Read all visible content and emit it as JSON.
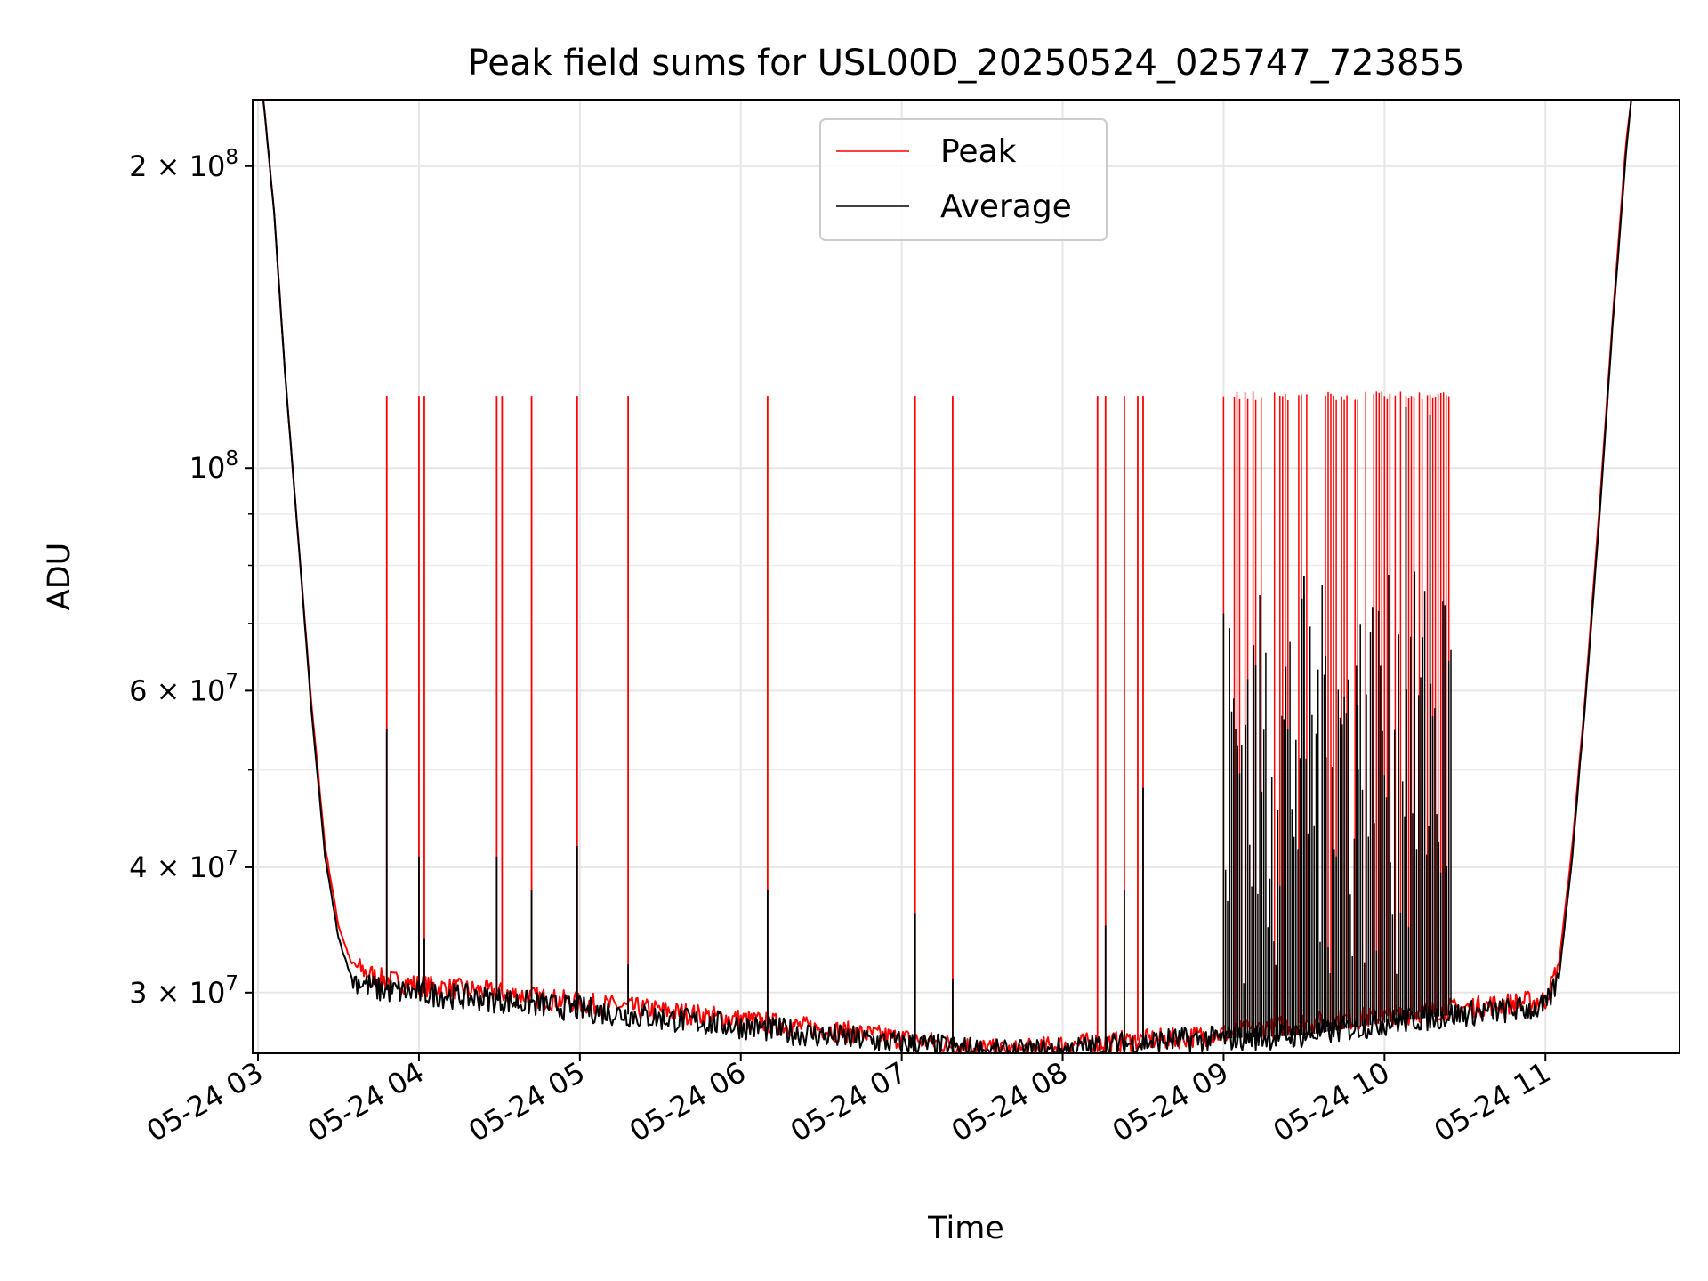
{
  "chart_data": {
    "type": "line",
    "title": "Peak field sums for USL00D_20250524_025747_723855",
    "xlabel": "Time",
    "ylabel": "ADU",
    "yscale": "log",
    "ylim": [
      26100000,
      233000000
    ],
    "xlim": [
      "2025-05-24 02:58",
      "2025-05-24 11:50"
    ],
    "grid": true,
    "legend_placement": "upper center",
    "x_ticks": [
      "05-24 03",
      "05-24 04",
      "05-24 05",
      "05-24 06",
      "05-24 07",
      "05-24 08",
      "05-24 09",
      "05-24 10",
      "05-24 11"
    ],
    "y_ticks": [
      {
        "value": 200000000,
        "mantissa": "2",
        "exponent": "8"
      },
      {
        "value": 100000000,
        "mantissa": "",
        "exponent": "8"
      },
      {
        "value": 60000000,
        "mantissa": "6",
        "exponent": "7"
      },
      {
        "value": 40000000,
        "mantissa": "4",
        "exponent": "7"
      },
      {
        "value": 30000000,
        "mantissa": "3",
        "exponent": "7"
      }
    ],
    "series": [
      {
        "name": "Peak",
        "color": "#ff0000",
        "baseline": [
          [
            "2025-05-24 03:02",
            233000000
          ],
          [
            "2025-05-24 03:06",
            180000000
          ],
          [
            "2025-05-24 03:10",
            125000000
          ],
          [
            "2025-05-24 03:15",
            85000000
          ],
          [
            "2025-05-24 03:20",
            58000000
          ],
          [
            "2025-05-24 03:25",
            42000000
          ],
          [
            "2025-05-24 03:30",
            35000000
          ],
          [
            "2025-05-24 03:35",
            32000000
          ],
          [
            "2025-05-24 03:45",
            31000000
          ],
          [
            "2025-05-24 04:00",
            30500000
          ],
          [
            "2025-05-24 04:30",
            30000000
          ],
          [
            "2025-05-24 05:00",
            29300000
          ],
          [
            "2025-05-24 05:30",
            28800000
          ],
          [
            "2025-05-24 06:00",
            28200000
          ],
          [
            "2025-05-24 06:30",
            27600000
          ],
          [
            "2025-05-24 07:00",
            27000000
          ],
          [
            "2025-05-24 07:20",
            26600000
          ],
          [
            "2025-05-24 07:40",
            26200000
          ],
          [
            "2025-05-24 08:00",
            26600000
          ],
          [
            "2025-05-24 08:20",
            26800000
          ],
          [
            "2025-05-24 08:40",
            27000000
          ],
          [
            "2025-05-24 09:00",
            27300000
          ],
          [
            "2025-05-24 09:30",
            28000000
          ],
          [
            "2025-05-24 10:00",
            28400000
          ],
          [
            "2025-05-24 10:30",
            29000000
          ],
          [
            "2025-05-24 11:00",
            29500000
          ],
          [
            "2025-05-24 11:05",
            32000000
          ],
          [
            "2025-05-24 11:10",
            42000000
          ],
          [
            "2025-05-24 11:15",
            60000000
          ],
          [
            "2025-05-24 11:20",
            90000000
          ],
          [
            "2025-05-24 11:25",
            140000000
          ],
          [
            "2025-05-24 11:30",
            210000000
          ],
          [
            "2025-05-24 11:32",
            233000000
          ]
        ],
        "spikes": [
          [
            "2025-05-24 03:48",
            118000000
          ],
          [
            "2025-05-24 04:00",
            118000000
          ],
          [
            "2025-05-24 04:02",
            118000000
          ],
          [
            "2025-05-24 04:29",
            118000000
          ],
          [
            "2025-05-24 04:31",
            118000000
          ],
          [
            "2025-05-24 04:42",
            118000000
          ],
          [
            "2025-05-24 04:59",
            118000000
          ],
          [
            "2025-05-24 05:18",
            118000000
          ],
          [
            "2025-05-24 06:10",
            118000000
          ],
          [
            "2025-05-24 07:05",
            118000000
          ],
          [
            "2025-05-24 07:19",
            118000000
          ],
          [
            "2025-05-24 08:13",
            118000000
          ],
          [
            "2025-05-24 08:16",
            118000000
          ],
          [
            "2025-05-24 08:23",
            118000000
          ],
          [
            "2025-05-24 08:28",
            118000000
          ],
          [
            "2025-05-24 08:30",
            118000000
          ]
        ],
        "dense_block": [
          "2025-05-24 09:00",
          "2025-05-24 10:25",
          118000000
        ]
      },
      {
        "name": "Average",
        "color": "#000000",
        "baseline": [
          [
            "2025-05-24 03:02",
            233000000
          ],
          [
            "2025-05-24 03:06",
            180000000
          ],
          [
            "2025-05-24 03:10",
            125000000
          ],
          [
            "2025-05-24 03:15",
            85000000
          ],
          [
            "2025-05-24 03:20",
            57000000
          ],
          [
            "2025-05-24 03:25",
            41000000
          ],
          [
            "2025-05-24 03:30",
            34000000
          ],
          [
            "2025-05-24 03:35",
            31000000
          ],
          [
            "2025-05-24 03:45",
            30200000
          ],
          [
            "2025-05-24 04:00",
            30000000
          ],
          [
            "2025-05-24 04:30",
            29500000
          ],
          [
            "2025-05-24 05:00",
            28900000
          ],
          [
            "2025-05-24 05:30",
            28300000
          ],
          [
            "2025-05-24 06:00",
            27800000
          ],
          [
            "2025-05-24 06:30",
            27200000
          ],
          [
            "2025-05-24 07:00",
            26700000
          ],
          [
            "2025-05-24 07:20",
            26400000
          ],
          [
            "2025-05-24 07:40",
            26100000
          ],
          [
            "2025-05-24 08:00",
            26300000
          ],
          [
            "2025-05-24 08:20",
            26600000
          ],
          [
            "2025-05-24 08:40",
            26900000
          ],
          [
            "2025-05-24 09:00",
            27000000
          ],
          [
            "2025-05-24 09:30",
            27200000
          ],
          [
            "2025-05-24 10:00",
            28000000
          ],
          [
            "2025-05-24 10:30",
            28600000
          ],
          [
            "2025-05-24 11:00",
            29000000
          ],
          [
            "2025-05-24 11:05",
            31000000
          ],
          [
            "2025-05-24 11:10",
            41000000
          ],
          [
            "2025-05-24 11:15",
            59000000
          ],
          [
            "2025-05-24 11:20",
            88000000
          ],
          [
            "2025-05-24 11:25",
            138000000
          ],
          [
            "2025-05-24 11:30",
            205000000
          ],
          [
            "2025-05-24 11:32",
            233000000
          ]
        ],
        "spikes": [
          [
            "2025-05-24 03:48",
            55000000
          ],
          [
            "2025-05-24 04:00",
            41000000
          ],
          [
            "2025-05-24 04:02",
            34000000
          ],
          [
            "2025-05-24 04:29",
            41000000
          ],
          [
            "2025-05-24 04:42",
            38000000
          ],
          [
            "2025-05-24 04:59",
            42000000
          ],
          [
            "2025-05-24 05:18",
            32000000
          ],
          [
            "2025-05-24 06:10",
            38000000
          ],
          [
            "2025-05-24 07:05",
            36000000
          ],
          [
            "2025-05-24 07:19",
            31000000
          ],
          [
            "2025-05-24 08:16",
            35000000
          ],
          [
            "2025-05-24 08:23",
            38000000
          ],
          [
            "2025-05-24 08:30",
            48000000
          ],
          [
            "2025-05-24 09:30",
            78000000
          ],
          [
            "2025-05-24 09:38",
            65000000
          ],
          [
            "2025-05-24 09:50",
            58000000
          ],
          [
            "2025-05-24 10:08",
            115000000
          ],
          [
            "2025-05-24 10:17",
            113000000
          ]
        ]
      }
    ]
  }
}
